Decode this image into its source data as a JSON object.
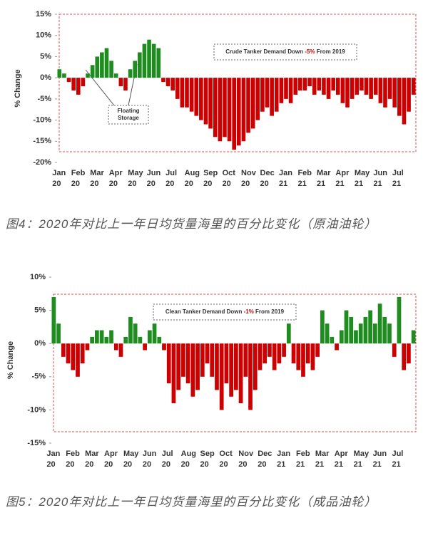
{
  "chart_data": [
    {
      "type": "bar",
      "y_label": "% Change",
      "annotation": {
        "text_before": "Crude Tanker Demand Down ",
        "highlight": "-5%",
        "text_after": " From 2019"
      },
      "callout": "Floating Storage",
      "positive_color": "#1e8c1e",
      "negative_color": "#cc0000",
      "ylim": [
        -20,
        15
      ],
      "yticks": [
        {
          "value": -20,
          "label": "-20%"
        },
        {
          "value": -15,
          "label": "-15%"
        },
        {
          "value": -10,
          "label": "-10%"
        },
        {
          "value": -5,
          "label": "-5%"
        },
        {
          "value": 0,
          "label": "0%"
        },
        {
          "value": 5,
          "label": "5%"
        },
        {
          "value": 10,
          "label": "10%"
        },
        {
          "value": 15,
          "label": "15%"
        }
      ],
      "categories": [
        "Jan 20",
        null,
        null,
        null,
        "Feb 20",
        null,
        null,
        null,
        "Mar 20",
        null,
        null,
        null,
        "Apr 20",
        null,
        null,
        null,
        "May 20",
        null,
        null,
        null,
        "Jun 20",
        null,
        null,
        null,
        "Jul 20",
        null,
        null,
        null,
        "Aug 20",
        null,
        null,
        null,
        "Sep 20",
        null,
        null,
        null,
        "Oct 20",
        null,
        null,
        null,
        "Nov 20",
        null,
        null,
        null,
        "Dec 20",
        null,
        null,
        null,
        "Jan 21",
        null,
        null,
        null,
        "Feb 21",
        null,
        null,
        null,
        "Mar 21",
        null,
        null,
        null,
        "Apr 21",
        null,
        null,
        null,
        "May 21",
        null,
        null,
        null,
        "Jun 21",
        null,
        null,
        null,
        "Jul 21",
        null,
        null,
        null
      ],
      "values": [
        2,
        1,
        -1,
        -3,
        -4,
        -2,
        1,
        3,
        5,
        6,
        7,
        4,
        1,
        -2,
        -3,
        2,
        4,
        6,
        8,
        9,
        8,
        7,
        -1,
        -2,
        -3,
        -5,
        -7,
        -7,
        -8,
        -9,
        -10,
        -11,
        -12,
        -14,
        -15,
        -14,
        -15,
        -17,
        -16,
        -15,
        -13,
        -12,
        -10,
        -8,
        -7,
        -9,
        -8,
        -6,
        -5,
        -6,
        -4,
        -3,
        -3,
        -2,
        -4,
        -3,
        -4,
        -5,
        -3,
        -4,
        -6,
        -7,
        -5,
        -4,
        -3,
        -4,
        -5,
        -4,
        -6,
        -7,
        -5,
        -7,
        -9,
        -11,
        -8,
        -4
      ]
    },
    {
      "type": "bar",
      "y_label": "% Change",
      "annotation": {
        "text_before": "Clean Tanker Demand Down ",
        "highlight": "-1%",
        "text_after": " From 2019"
      },
      "positive_color": "#1e8c1e",
      "negative_color": "#cc0000",
      "ylim": [
        -15,
        10
      ],
      "yticks": [
        {
          "value": -15,
          "label": "-15%"
        },
        {
          "value": -10,
          "label": "-10%"
        },
        {
          "value": -5,
          "label": "-5%"
        },
        {
          "value": 0,
          "label": "0%"
        },
        {
          "value": 5,
          "label": "5%"
        },
        {
          "value": 10,
          "label": "10%"
        }
      ],
      "categories": [
        "Jan 20",
        null,
        null,
        null,
        "Feb 20",
        null,
        null,
        null,
        "Mar 20",
        null,
        null,
        null,
        "Apr 20",
        null,
        null,
        null,
        "May 20",
        null,
        null,
        null,
        "Jun 20",
        null,
        null,
        null,
        "Jul 20",
        null,
        null,
        null,
        "Aug 20",
        null,
        null,
        null,
        "Sep 20",
        null,
        null,
        null,
        "Oct 20",
        null,
        null,
        null,
        "Nov 20",
        null,
        null,
        null,
        "Dec 20",
        null,
        null,
        null,
        "Jan 21",
        null,
        null,
        null,
        "Feb 21",
        null,
        null,
        null,
        "Mar 21",
        null,
        null,
        null,
        "Apr 21",
        null,
        null,
        null,
        "May 21",
        null,
        null,
        null,
        "Jun 21",
        null,
        null,
        null,
        "Jul 21",
        null,
        null,
        null
      ],
      "values": [
        7,
        3,
        -2,
        -3,
        -4,
        -5,
        -3,
        -1,
        1,
        2,
        2,
        1,
        2,
        -1,
        -2,
        1,
        4,
        3,
        1,
        -1,
        2,
        3,
        1,
        -1,
        -6,
        -9,
        -7,
        -5,
        -6,
        -8,
        -7,
        -5,
        -3,
        -5,
        -7,
        -10,
        -6,
        -8,
        -7,
        -9,
        -5,
        -10,
        -7,
        -4,
        -3,
        -2,
        -4,
        -3,
        -2,
        3,
        -3,
        -4,
        -5,
        -3,
        -4,
        -2,
        5,
        3,
        1,
        -1,
        2,
        5,
        4,
        2,
        3,
        4,
        5,
        3,
        6,
        4,
        3,
        -2,
        7,
        -4,
        -3,
        2
      ]
    }
  ],
  "captions": [
    "图4：2020年对比上一年日均货量海里的百分比变化（原油油轮）",
    "图5：2020年对比上一年日均货量海里的百分比变化（成品油轮）"
  ]
}
